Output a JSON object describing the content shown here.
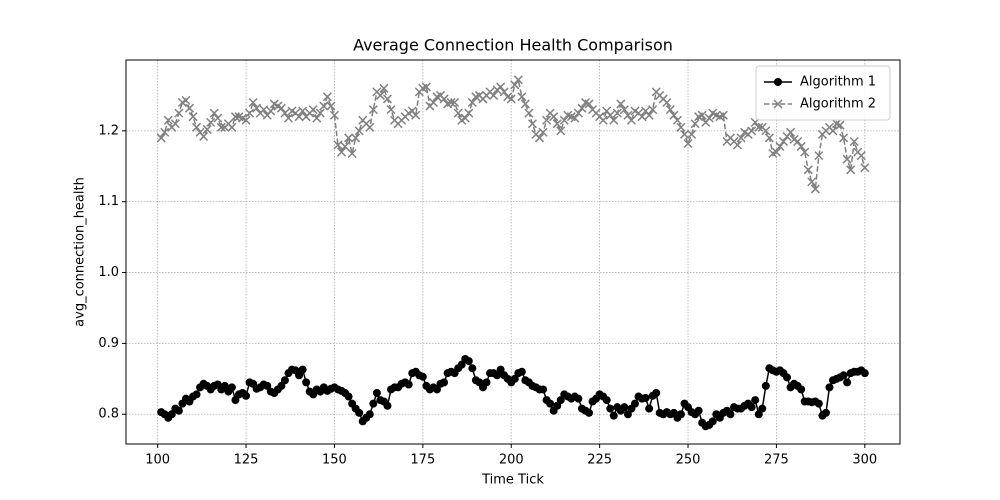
{
  "chart_data": {
    "type": "line",
    "title": "Average Connection Health Comparison",
    "xlabel": "Time Tick",
    "ylabel": "avg_connection_health",
    "x": [
      101,
      102,
      103,
      104,
      105,
      106,
      107,
      108,
      109,
      110,
      111,
      112,
      113,
      114,
      115,
      116,
      117,
      118,
      119,
      120,
      121,
      122,
      123,
      124,
      125,
      126,
      127,
      128,
      129,
      130,
      131,
      132,
      133,
      134,
      135,
      136,
      137,
      138,
      139,
      140,
      141,
      142,
      143,
      144,
      145,
      146,
      147,
      148,
      149,
      150,
      151,
      152,
      153,
      154,
      155,
      156,
      157,
      158,
      159,
      160,
      161,
      162,
      163,
      164,
      165,
      166,
      167,
      168,
      169,
      170,
      171,
      172,
      173,
      174,
      175,
      176,
      177,
      178,
      179,
      180,
      181,
      182,
      183,
      184,
      185,
      186,
      187,
      188,
      189,
      190,
      191,
      192,
      193,
      194,
      195,
      196,
      197,
      198,
      199,
      200,
      201,
      202,
      203,
      204,
      205,
      206,
      207,
      208,
      209,
      210,
      211,
      212,
      213,
      214,
      215,
      216,
      217,
      218,
      219,
      220,
      221,
      222,
      223,
      224,
      225,
      226,
      227,
      228,
      229,
      230,
      231,
      232,
      233,
      234,
      235,
      236,
      237,
      238,
      239,
      240,
      241,
      242,
      243,
      244,
      245,
      246,
      247,
      248,
      249,
      250,
      251,
      252,
      253,
      254,
      255,
      256,
      257,
      258,
      259,
      260,
      261,
      262,
      263,
      264,
      265,
      266,
      267,
      268,
      269,
      270,
      271,
      272,
      273,
      274,
      275,
      276,
      277,
      278,
      279,
      280,
      281,
      282,
      283,
      284,
      285,
      286,
      287,
      288,
      289,
      290,
      291,
      292,
      293,
      294,
      295,
      296,
      297,
      298,
      299,
      300
    ],
    "series": [
      {
        "name": "Algorithm 1",
        "color": "#000000",
        "marker": "o",
        "linestyle": "solid",
        "values": [
          0.803,
          0.8,
          0.795,
          0.8,
          0.808,
          0.805,
          0.815,
          0.822,
          0.818,
          0.825,
          0.828,
          0.838,
          0.843,
          0.84,
          0.835,
          0.84,
          0.842,
          0.835,
          0.84,
          0.832,
          0.838,
          0.82,
          0.828,
          0.83,
          0.826,
          0.845,
          0.843,
          0.836,
          0.838,
          0.842,
          0.84,
          0.832,
          0.83,
          0.835,
          0.84,
          0.848,
          0.858,
          0.863,
          0.862,
          0.855,
          0.863,
          0.845,
          0.832,
          0.828,
          0.835,
          0.832,
          0.838,
          0.833,
          0.836,
          0.838,
          0.835,
          0.833,
          0.83,
          0.825,
          0.815,
          0.808,
          0.802,
          0.79,
          0.795,
          0.8,
          0.815,
          0.83,
          0.82,
          0.818,
          0.812,
          0.835,
          0.838,
          0.838,
          0.843,
          0.845,
          0.842,
          0.858,
          0.86,
          0.855,
          0.853,
          0.84,
          0.835,
          0.838,
          0.835,
          0.843,
          0.845,
          0.858,
          0.86,
          0.858,
          0.865,
          0.87,
          0.878,
          0.875,
          0.865,
          0.848,
          0.845,
          0.838,
          0.845,
          0.858,
          0.858,
          0.855,
          0.863,
          0.855,
          0.85,
          0.845,
          0.85,
          0.858,
          0.86,
          0.848,
          0.845,
          0.84,
          0.838,
          0.835,
          0.835,
          0.82,
          0.815,
          0.805,
          0.812,
          0.82,
          0.828,
          0.825,
          0.822,
          0.825,
          0.822,
          0.808,
          0.805,
          0.802,
          0.818,
          0.822,
          0.828,
          0.825,
          0.82,
          0.808,
          0.798,
          0.81,
          0.805,
          0.81,
          0.8,
          0.808,
          0.815,
          0.825,
          0.822,
          0.823,
          0.808,
          0.826,
          0.83,
          0.802,
          0.8,
          0.803,
          0.8,
          0.802,
          0.795,
          0.8,
          0.815,
          0.81,
          0.803,
          0.8,
          0.805,
          0.788,
          0.783,
          0.785,
          0.79,
          0.8,
          0.795,
          0.802,
          0.805,
          0.8,
          0.81,
          0.808,
          0.808,
          0.812,
          0.815,
          0.81,
          0.82,
          0.8,
          0.808,
          0.84,
          0.865,
          0.862,
          0.86,
          0.862,
          0.858,
          0.852,
          0.838,
          0.843,
          0.84,
          0.835,
          0.818,
          0.818,
          0.817,
          0.818,
          0.815,
          0.798,
          0.802,
          0.838,
          0.848,
          0.85,
          0.852,
          0.855,
          0.845,
          0.858,
          0.86,
          0.86,
          0.862,
          0.858
        ]
      },
      {
        "name": "Algorithm 2",
        "color": "#808080",
        "marker": "x",
        "linestyle": "dashed",
        "values": [
          1.19,
          1.198,
          1.215,
          1.205,
          1.21,
          1.225,
          1.24,
          1.243,
          1.232,
          1.22,
          1.205,
          1.198,
          1.192,
          1.202,
          1.212,
          1.225,
          1.218,
          1.205,
          1.205,
          1.21,
          1.205,
          1.22,
          1.22,
          1.218,
          1.215,
          1.225,
          1.24,
          1.232,
          1.225,
          1.23,
          1.222,
          1.228,
          1.238,
          1.235,
          1.232,
          1.225,
          1.218,
          1.228,
          1.225,
          1.22,
          1.228,
          1.22,
          1.225,
          1.23,
          1.218,
          1.225,
          1.235,
          1.248,
          1.235,
          1.222,
          1.18,
          1.17,
          1.178,
          1.19,
          1.168,
          1.19,
          1.2,
          1.215,
          1.21,
          1.205,
          1.23,
          1.255,
          1.25,
          1.26,
          1.245,
          1.23,
          1.215,
          1.21,
          1.215,
          1.22,
          1.225,
          1.228,
          1.222,
          1.255,
          1.26,
          1.262,
          1.235,
          1.24,
          1.248,
          1.25,
          1.245,
          1.238,
          1.24,
          1.24,
          1.225,
          1.215,
          1.218,
          1.225,
          1.24,
          1.248,
          1.25,
          1.245,
          1.25,
          1.255,
          1.25,
          1.258,
          1.262,
          1.255,
          1.248,
          1.245,
          1.265,
          1.272,
          1.248,
          1.238,
          1.225,
          1.21,
          1.195,
          1.19,
          1.198,
          1.215,
          1.225,
          1.22,
          1.21,
          1.2,
          1.215,
          1.222,
          1.22,
          1.218,
          1.225,
          1.232,
          1.24,
          1.238,
          1.23,
          1.225,
          1.22,
          1.215,
          1.228,
          1.222,
          1.215,
          1.225,
          1.238,
          1.23,
          1.222,
          1.215,
          1.228,
          1.225,
          1.22,
          1.228,
          1.222,
          1.23,
          1.255,
          1.25,
          1.245,
          1.24,
          1.23,
          1.222,
          1.215,
          1.205,
          1.195,
          1.182,
          1.195,
          1.21,
          1.22,
          1.222,
          1.212,
          1.218,
          1.225,
          1.222,
          1.22,
          1.222,
          1.185,
          1.19,
          1.185,
          1.18,
          1.19,
          1.198,
          1.195,
          1.2,
          1.212,
          1.205,
          1.205,
          1.2,
          1.19,
          1.168,
          1.17,
          1.178,
          1.185,
          1.192,
          1.198,
          1.188,
          1.185,
          1.178,
          1.17,
          1.145,
          1.128,
          1.118,
          1.165,
          1.195,
          1.2,
          1.205,
          1.2,
          1.21,
          1.208,
          1.19,
          1.16,
          1.145,
          1.185,
          1.17,
          1.165,
          1.148
        ]
      }
    ],
    "xlim": [
      91.05,
      309.95
    ],
    "xticks": [
      100,
      125,
      150,
      175,
      200,
      225,
      250,
      275,
      300
    ],
    "ylim": [
      0.758,
      1.3
    ],
    "yticks": [
      0.8,
      0.9,
      {
        "value": 1.0,
        "label": "1.0"
      },
      1.1,
      1.2
    ],
    "grid": true,
    "legend": "upper right"
  }
}
